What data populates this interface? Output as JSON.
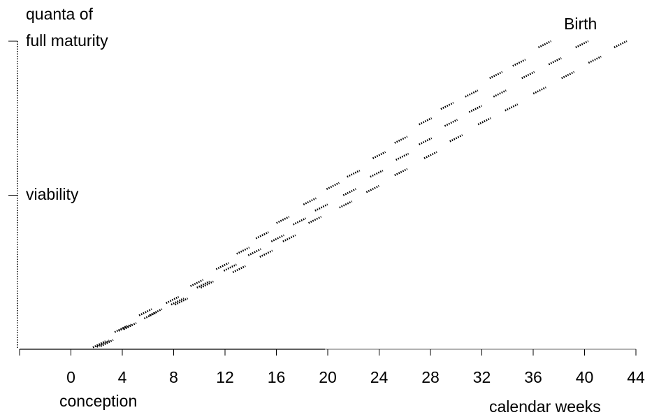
{
  "chart_data": {
    "type": "scatter",
    "title": "",
    "xlabel": "calendar weeks",
    "ylabel": "quanta of full maturity",
    "xlim": [
      -4,
      44
    ],
    "ylim": [
      0,
      1
    ],
    "x_ticks": [
      0,
      4,
      8,
      12,
      16,
      20,
      24,
      28,
      32,
      36,
      40,
      44
    ],
    "y_ticks": [
      {
        "y": 0.5,
        "label": "viability"
      },
      {
        "y": 1.0,
        "label": "full maturity"
      }
    ],
    "annotations": {
      "y_axis_top": "quanta of",
      "birth": "Birth",
      "conception": "conception"
    },
    "grid": false,
    "legend": "none",
    "marker": "short dotted dashes",
    "series": [
      {
        "values": [
          {
            "x": 2.2,
            "y": 0.016
          },
          {
            "x": 3.9,
            "y": 0.066
          },
          {
            "x": 5.8,
            "y": 0.12
          },
          {
            "x": 7.9,
            "y": 0.16
          },
          {
            "x": 9.8,
            "y": 0.215
          },
          {
            "x": 11.8,
            "y": 0.27
          },
          {
            "x": 13.4,
            "y": 0.32
          },
          {
            "x": 14.9,
            "y": 0.37
          },
          {
            "x": 16.5,
            "y": 0.42
          },
          {
            "x": 18.6,
            "y": 0.48
          },
          {
            "x": 20.4,
            "y": 0.53
          },
          {
            "x": 22.0,
            "y": 0.57
          },
          {
            "x": 24.0,
            "y": 0.63
          },
          {
            "x": 25.7,
            "y": 0.68
          },
          {
            "x": 27.6,
            "y": 0.74
          },
          {
            "x": 29.3,
            "y": 0.79
          },
          {
            "x": 31.2,
            "y": 0.83
          },
          {
            "x": 33.1,
            "y": 0.89
          },
          {
            "x": 34.9,
            "y": 0.93
          },
          {
            "x": 36.9,
            "y": 0.99
          }
        ]
      },
      {
        "values": [
          {
            "x": 2.5,
            "y": 0.018
          },
          {
            "x": 4.2,
            "y": 0.07
          },
          {
            "x": 6.2,
            "y": 0.11
          },
          {
            "x": 8.3,
            "y": 0.155
          },
          {
            "x": 10.3,
            "y": 0.21
          },
          {
            "x": 12.4,
            "y": 0.265
          },
          {
            "x": 14.3,
            "y": 0.315
          },
          {
            "x": 16.1,
            "y": 0.36
          },
          {
            "x": 17.8,
            "y": 0.415
          },
          {
            "x": 19.5,
            "y": 0.46
          },
          {
            "x": 21.7,
            "y": 0.51
          },
          {
            "x": 23.8,
            "y": 0.57
          },
          {
            "x": 25.8,
            "y": 0.625
          },
          {
            "x": 27.6,
            "y": 0.675
          },
          {
            "x": 29.6,
            "y": 0.735
          },
          {
            "x": 31.5,
            "y": 0.78
          },
          {
            "x": 33.4,
            "y": 0.83
          },
          {
            "x": 35.6,
            "y": 0.89
          },
          {
            "x": 37.7,
            "y": 0.935
          },
          {
            "x": 39.8,
            "y": 0.99
          }
        ]
      },
      {
        "values": [
          {
            "x": 2.8,
            "y": 0.02
          },
          {
            "x": 4.6,
            "y": 0.075
          },
          {
            "x": 6.6,
            "y": 0.12
          },
          {
            "x": 8.6,
            "y": 0.155
          },
          {
            "x": 10.6,
            "y": 0.21
          },
          {
            "x": 13.1,
            "y": 0.26
          },
          {
            "x": 15.2,
            "y": 0.31
          },
          {
            "x": 17.0,
            "y": 0.36
          },
          {
            "x": 19.0,
            "y": 0.42
          },
          {
            "x": 21.4,
            "y": 0.47
          },
          {
            "x": 23.5,
            "y": 0.52
          },
          {
            "x": 25.7,
            "y": 0.575
          },
          {
            "x": 28.0,
            "y": 0.63
          },
          {
            "x": 30.0,
            "y": 0.685
          },
          {
            "x": 32.2,
            "y": 0.74
          },
          {
            "x": 34.3,
            "y": 0.785
          },
          {
            "x": 36.5,
            "y": 0.84
          },
          {
            "x": 38.7,
            "y": 0.89
          },
          {
            "x": 40.8,
            "y": 0.94
          },
          {
            "x": 42.8,
            "y": 0.99
          }
        ]
      }
    ]
  }
}
